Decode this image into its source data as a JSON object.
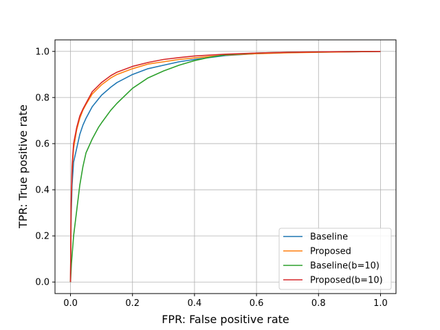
{
  "chart_data": {
    "type": "line",
    "xlabel": "FPR: False positive rate",
    "ylabel": "TPR: True positive rate",
    "xlim": [
      -0.05,
      1.05
    ],
    "ylim": [
      -0.05,
      1.05
    ],
    "xticks": [
      "0.0",
      "0.2",
      "0.4",
      "0.6",
      "0.8",
      "1.0"
    ],
    "yticks": [
      "0.0",
      "0.2",
      "0.4",
      "0.6",
      "0.8",
      "1.0"
    ],
    "grid": true,
    "legend_position": "lower-right",
    "series": [
      {
        "name": "Baseline",
        "color": "#1f77b4",
        "points": [
          [
            0,
            0
          ],
          [
            0.002,
            0.28
          ],
          [
            0.005,
            0.42
          ],
          [
            0.01,
            0.52
          ],
          [
            0.02,
            0.58
          ],
          [
            0.03,
            0.64
          ],
          [
            0.04,
            0.68
          ],
          [
            0.05,
            0.71
          ],
          [
            0.07,
            0.76
          ],
          [
            0.1,
            0.81
          ],
          [
            0.13,
            0.845
          ],
          [
            0.15,
            0.865
          ],
          [
            0.2,
            0.9
          ],
          [
            0.25,
            0.925
          ],
          [
            0.3,
            0.94
          ],
          [
            0.35,
            0.955
          ],
          [
            0.4,
            0.965
          ],
          [
            0.5,
            0.982
          ],
          [
            0.6,
            0.99
          ],
          [
            0.7,
            0.995
          ],
          [
            0.8,
            0.997
          ],
          [
            0.9,
            0.998
          ],
          [
            1.0,
            1.0
          ]
        ]
      },
      {
        "name": "Proposed",
        "color": "#ff7f0e",
        "points": [
          [
            0,
            0
          ],
          [
            0.002,
            0.33
          ],
          [
            0.005,
            0.48
          ],
          [
            0.01,
            0.58
          ],
          [
            0.02,
            0.66
          ],
          [
            0.03,
            0.71
          ],
          [
            0.04,
            0.745
          ],
          [
            0.05,
            0.77
          ],
          [
            0.07,
            0.815
          ],
          [
            0.1,
            0.855
          ],
          [
            0.13,
            0.885
          ],
          [
            0.15,
            0.9
          ],
          [
            0.2,
            0.925
          ],
          [
            0.25,
            0.945
          ],
          [
            0.3,
            0.955
          ],
          [
            0.35,
            0.965
          ],
          [
            0.4,
            0.972
          ],
          [
            0.5,
            0.984
          ],
          [
            0.6,
            0.99
          ],
          [
            0.7,
            0.994
          ],
          [
            0.8,
            0.996
          ],
          [
            0.9,
            0.998
          ],
          [
            1.0,
            1.0
          ]
        ]
      },
      {
        "name": "Baseline(b=10)",
        "color": "#2ca02c",
        "points": [
          [
            0,
            0
          ],
          [
            0.003,
            0.08
          ],
          [
            0.01,
            0.2
          ],
          [
            0.02,
            0.31
          ],
          [
            0.03,
            0.42
          ],
          [
            0.04,
            0.5
          ],
          [
            0.05,
            0.56
          ],
          [
            0.07,
            0.62
          ],
          [
            0.09,
            0.67
          ],
          [
            0.1,
            0.69
          ],
          [
            0.13,
            0.745
          ],
          [
            0.15,
            0.775
          ],
          [
            0.2,
            0.84
          ],
          [
            0.25,
            0.885
          ],
          [
            0.3,
            0.915
          ],
          [
            0.35,
            0.94
          ],
          [
            0.4,
            0.96
          ],
          [
            0.45,
            0.975
          ],
          [
            0.5,
            0.985
          ],
          [
            0.6,
            0.993
          ],
          [
            0.7,
            0.996
          ],
          [
            0.8,
            0.998
          ],
          [
            0.9,
            0.999
          ],
          [
            1.0,
            1.0
          ]
        ]
      },
      {
        "name": "Proposed(b=10)",
        "color": "#d62728",
        "points": [
          [
            0,
            0
          ],
          [
            0.002,
            0.34
          ],
          [
            0.005,
            0.5
          ],
          [
            0.01,
            0.6
          ],
          [
            0.02,
            0.67
          ],
          [
            0.03,
            0.72
          ],
          [
            0.04,
            0.75
          ],
          [
            0.05,
            0.775
          ],
          [
            0.07,
            0.825
          ],
          [
            0.1,
            0.865
          ],
          [
            0.13,
            0.895
          ],
          [
            0.15,
            0.91
          ],
          [
            0.2,
            0.935
          ],
          [
            0.25,
            0.952
          ],
          [
            0.3,
            0.965
          ],
          [
            0.35,
            0.973
          ],
          [
            0.4,
            0.98
          ],
          [
            0.5,
            0.988
          ],
          [
            0.6,
            0.993
          ],
          [
            0.7,
            0.996
          ],
          [
            0.8,
            0.998
          ],
          [
            0.9,
            0.999
          ],
          [
            1.0,
            1.0
          ]
        ]
      }
    ]
  }
}
